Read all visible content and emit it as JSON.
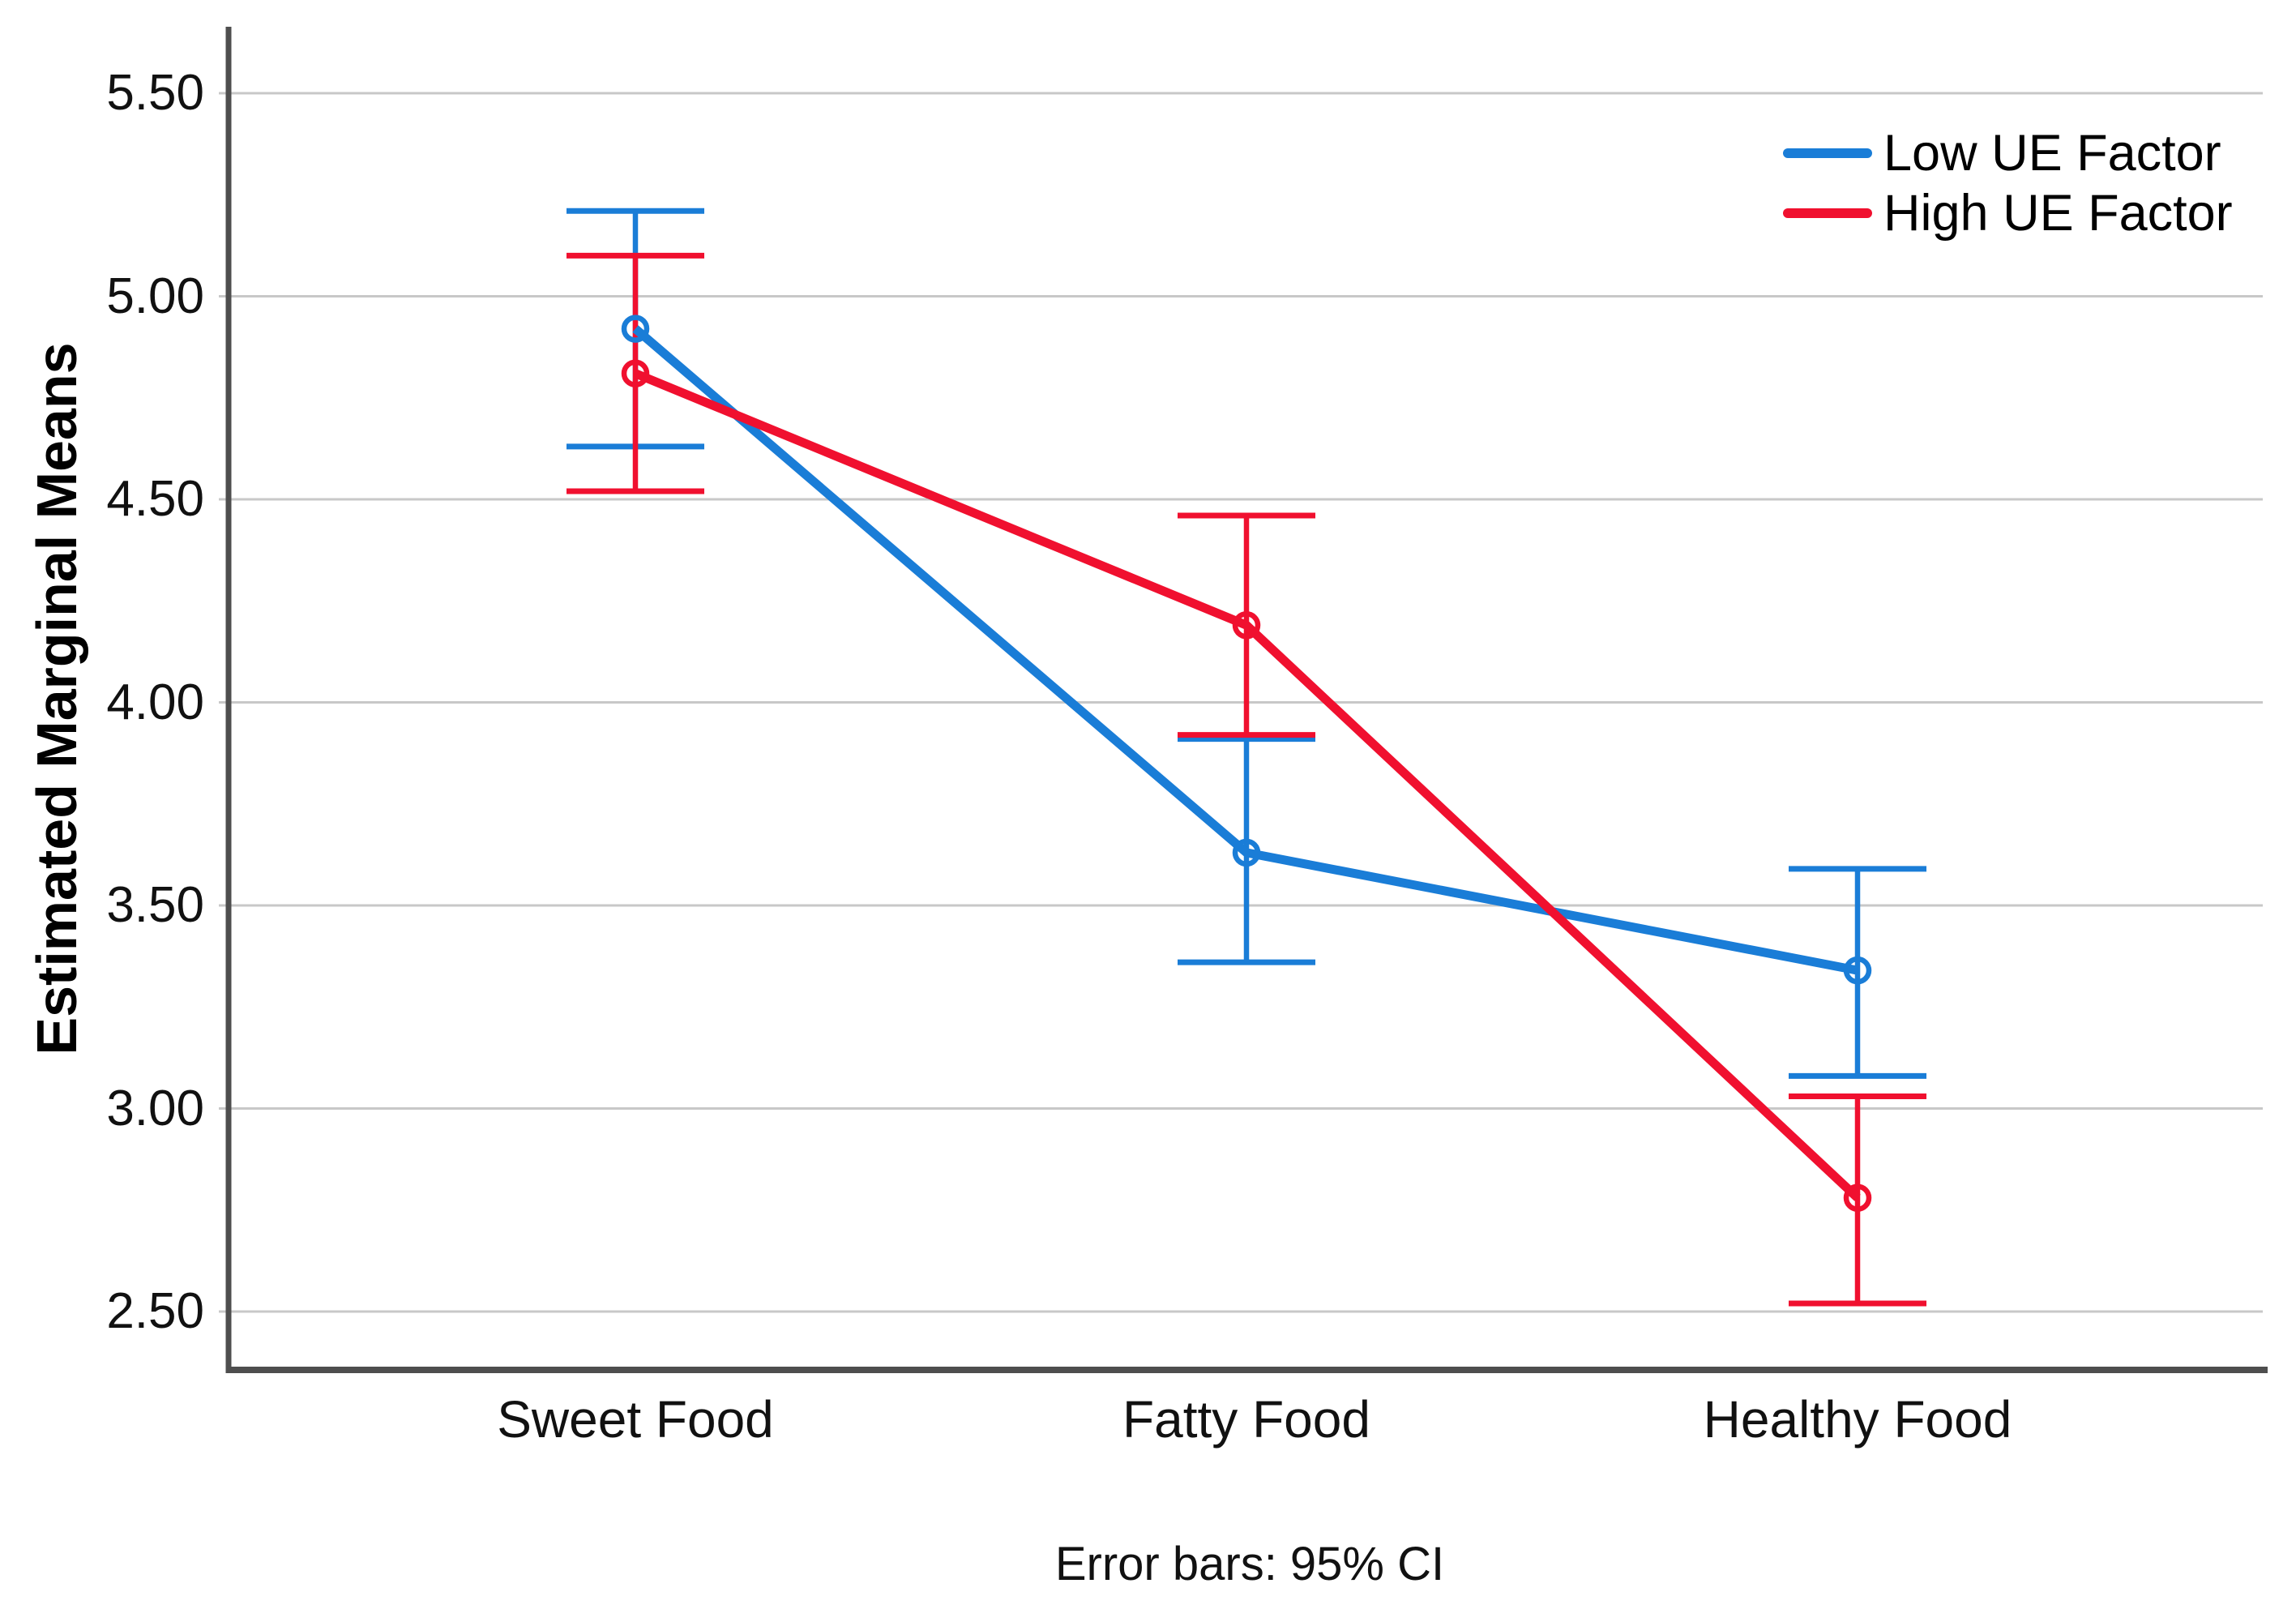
{
  "chart_data": {
    "type": "line",
    "title": "",
    "categories": [
      "Sweet Food",
      "Fatty Food",
      "Healthy Food"
    ],
    "series": [
      {
        "name": "Low UE Factor",
        "color": "#1A7DD7",
        "values": [
          4.92,
          3.63,
          3.34
        ],
        "ci_low": [
          4.63,
          3.36,
          3.08
        ],
        "ci_high": [
          5.21,
          3.91,
          3.59
        ]
      },
      {
        "name": "High UE Factor",
        "color": "#F0102F",
        "values": [
          4.81,
          4.19,
          2.78
        ],
        "ci_low": [
          4.52,
          3.92,
          2.52
        ],
        "ci_high": [
          5.1,
          4.46,
          3.03
        ]
      }
    ],
    "xlabel": "",
    "ylabel": "Estimated Marginal Means",
    "yticks": [
      5.5,
      5.0,
      4.5,
      4.0,
      3.5,
      3.0,
      2.5
    ],
    "ytick_labels": [
      "5.50",
      "5.00",
      "4.50",
      "4.00",
      "3.50",
      "3.00",
      "2.50"
    ],
    "ylim": [
      2.36,
      5.7
    ],
    "grid": "horizontal",
    "legend_position": "top-right-inside",
    "caption": "Error bars: 95% CI",
    "error_bars": "95% CI",
    "colors": {
      "gridline": "#c8c8c8",
      "axis": "#4e4e4e",
      "text": "#111111"
    }
  }
}
